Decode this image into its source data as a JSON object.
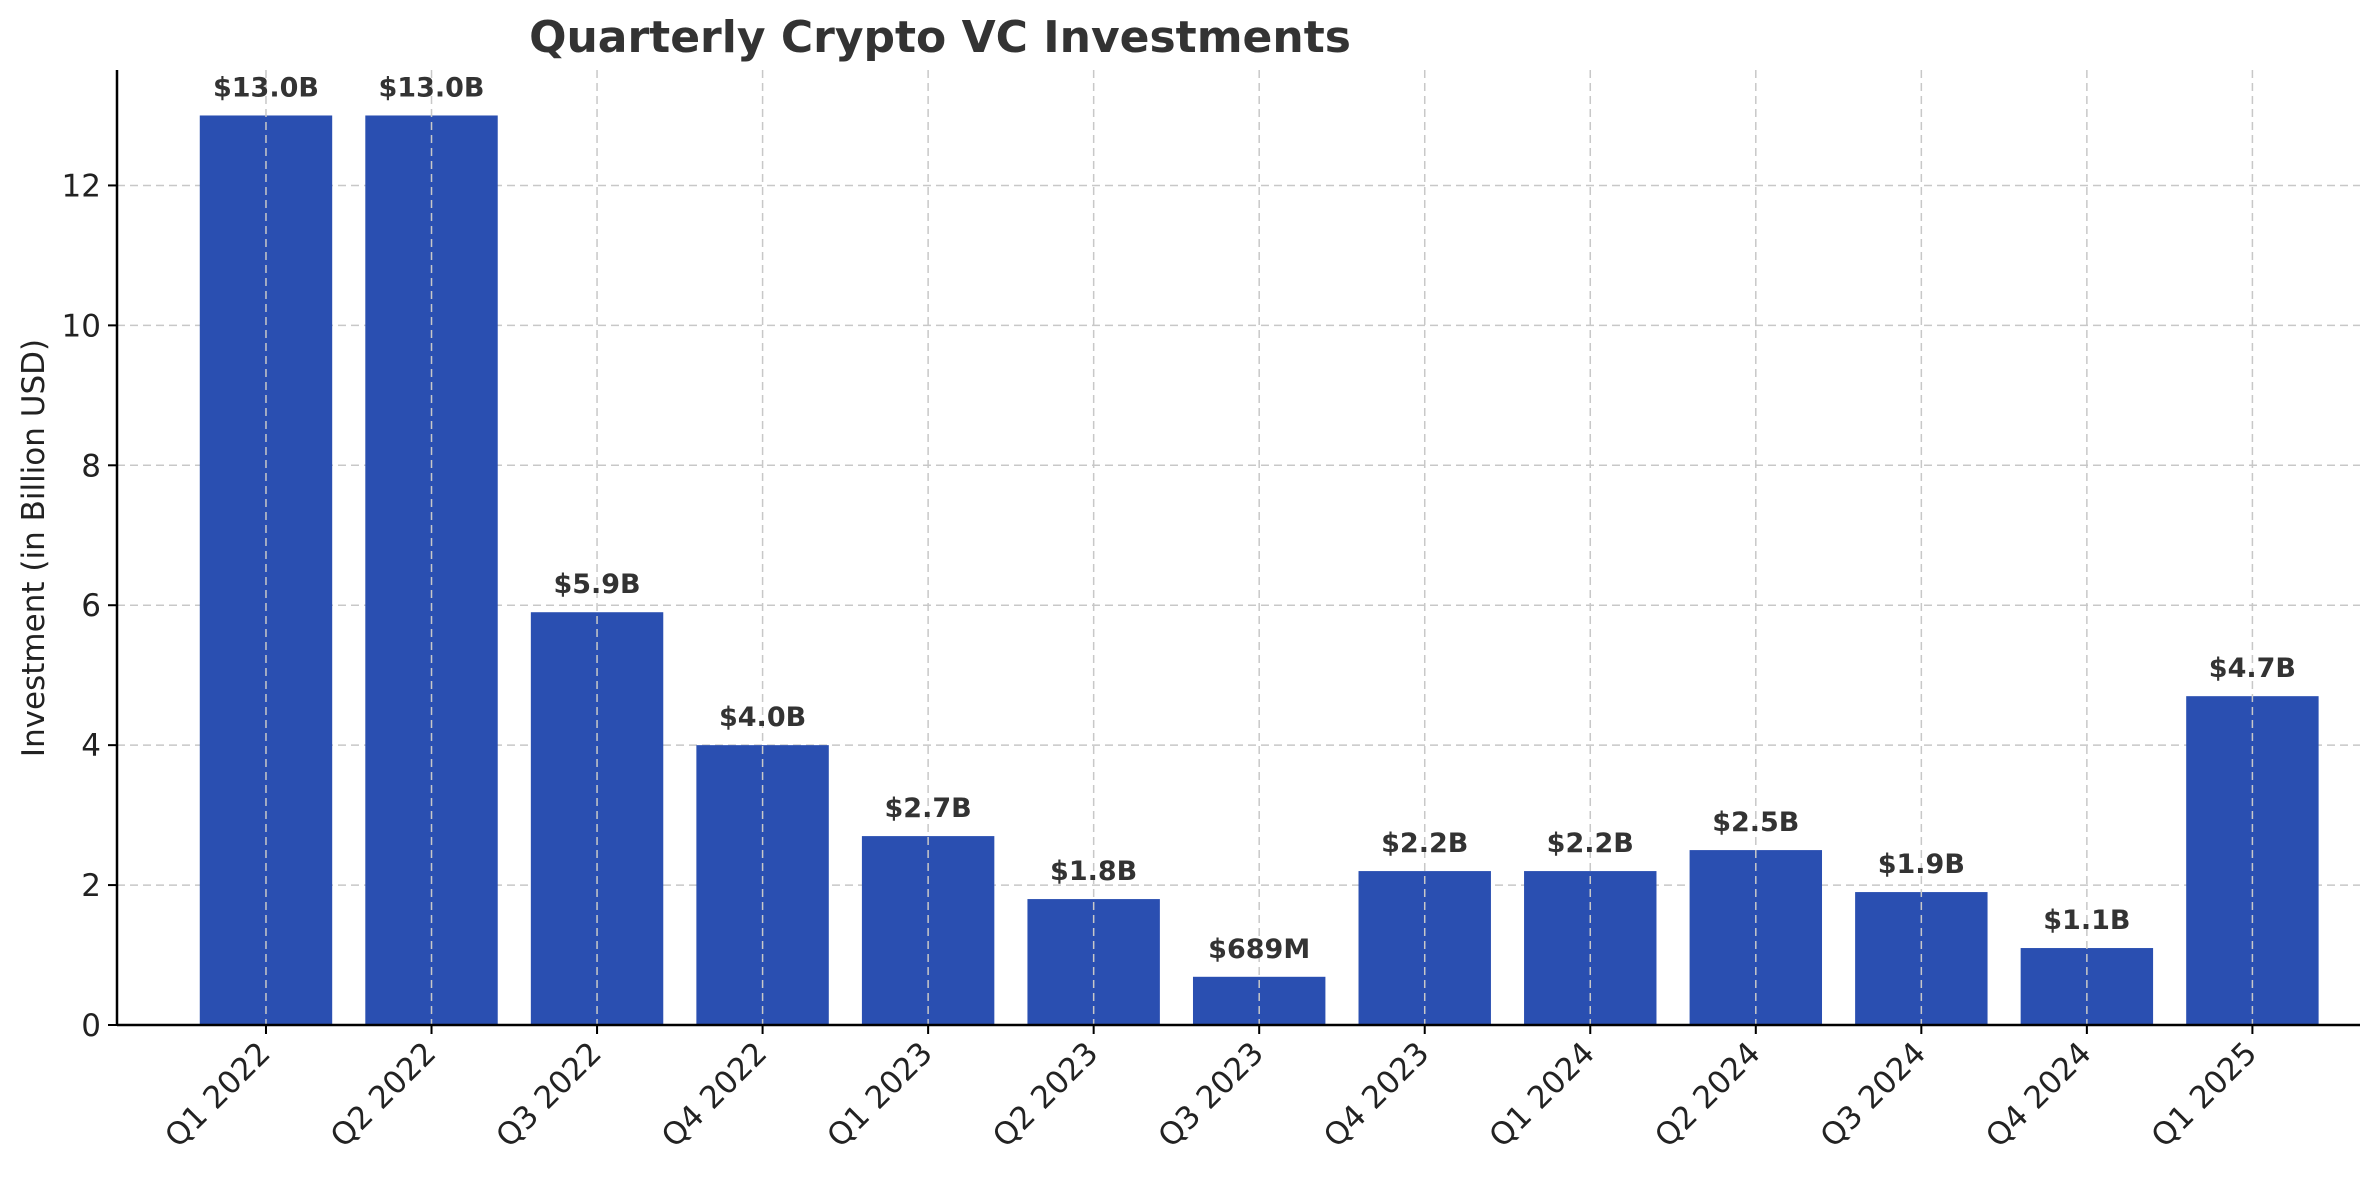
{
  "chart_data": {
    "type": "bar",
    "title": "Quarterly Crypto VC Investments",
    "xlabel": "",
    "ylabel": "Investment (in Billion USD)",
    "categories": [
      "Q1 2022",
      "Q2 2022",
      "Q3 2022",
      "Q4 2022",
      "Q1 2023",
      "Q2 2023",
      "Q3 2023",
      "Q4 2023",
      "Q1 2024",
      "Q2 2024",
      "Q3 2024",
      "Q4 2024",
      "Q1 2025"
    ],
    "values": [
      13.0,
      13.0,
      5.9,
      4.0,
      2.7,
      1.8,
      0.689,
      2.2,
      2.2,
      2.5,
      1.9,
      1.1,
      4.7
    ],
    "data_labels": [
      "$13.0B",
      "$13.0B",
      "$5.9B",
      "$4.0B",
      "$2.7B",
      "$1.8B",
      "$689M",
      "$2.2B",
      "$2.2B",
      "$2.5B",
      "$1.9B",
      "$1.1B",
      "$4.7B"
    ],
    "y_ticks": [
      0,
      2,
      4,
      6,
      8,
      10,
      12
    ],
    "ylim": [
      0,
      13.65
    ],
    "grid": true,
    "bar_color": "#2a4fb1",
    "text_color": "#333333"
  }
}
